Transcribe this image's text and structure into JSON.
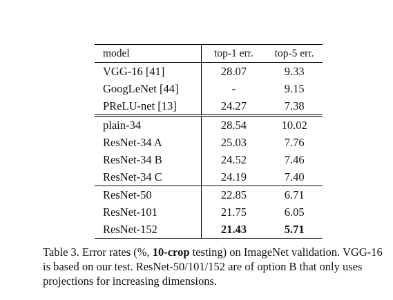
{
  "table": {
    "headers": [
      "model",
      "top-1 err.",
      "top-5 err."
    ],
    "groups": [
      {
        "rows": [
          {
            "model": "VGG-16 [41]",
            "top1": "28.07",
            "top5": "9.33"
          },
          {
            "model": "GoogLeNet [44]",
            "top1": "-",
            "top5": "9.15"
          },
          {
            "model": "PReLU-net [13]",
            "top1": "24.27",
            "top5": "7.38"
          }
        ]
      },
      {
        "rows": [
          {
            "model": "plain-34",
            "top1": "28.54",
            "top5": "10.02"
          },
          {
            "model": "ResNet-34 A",
            "top1": "25.03",
            "top5": "7.76"
          },
          {
            "model": "ResNet-34 B",
            "top1": "24.52",
            "top5": "7.46"
          },
          {
            "model": "ResNet-34 C",
            "top1": "24.19",
            "top5": "7.40"
          }
        ]
      },
      {
        "rows": [
          {
            "model": "ResNet-50",
            "top1": "22.85",
            "top5": "6.71"
          },
          {
            "model": "ResNet-101",
            "top1": "21.75",
            "top5": "6.05"
          },
          {
            "model": "ResNet-152",
            "top1": "21.43",
            "top5": "5.71"
          }
        ]
      }
    ]
  },
  "caption": {
    "prefix": "Table 3. Error rates (%, ",
    "bold": "10-crop",
    "suffix": " testing) on ImageNet validation. VGG-16 is based on our test. ResNet-50/101/152 are of option B that only uses projections for increasing dimensions."
  }
}
